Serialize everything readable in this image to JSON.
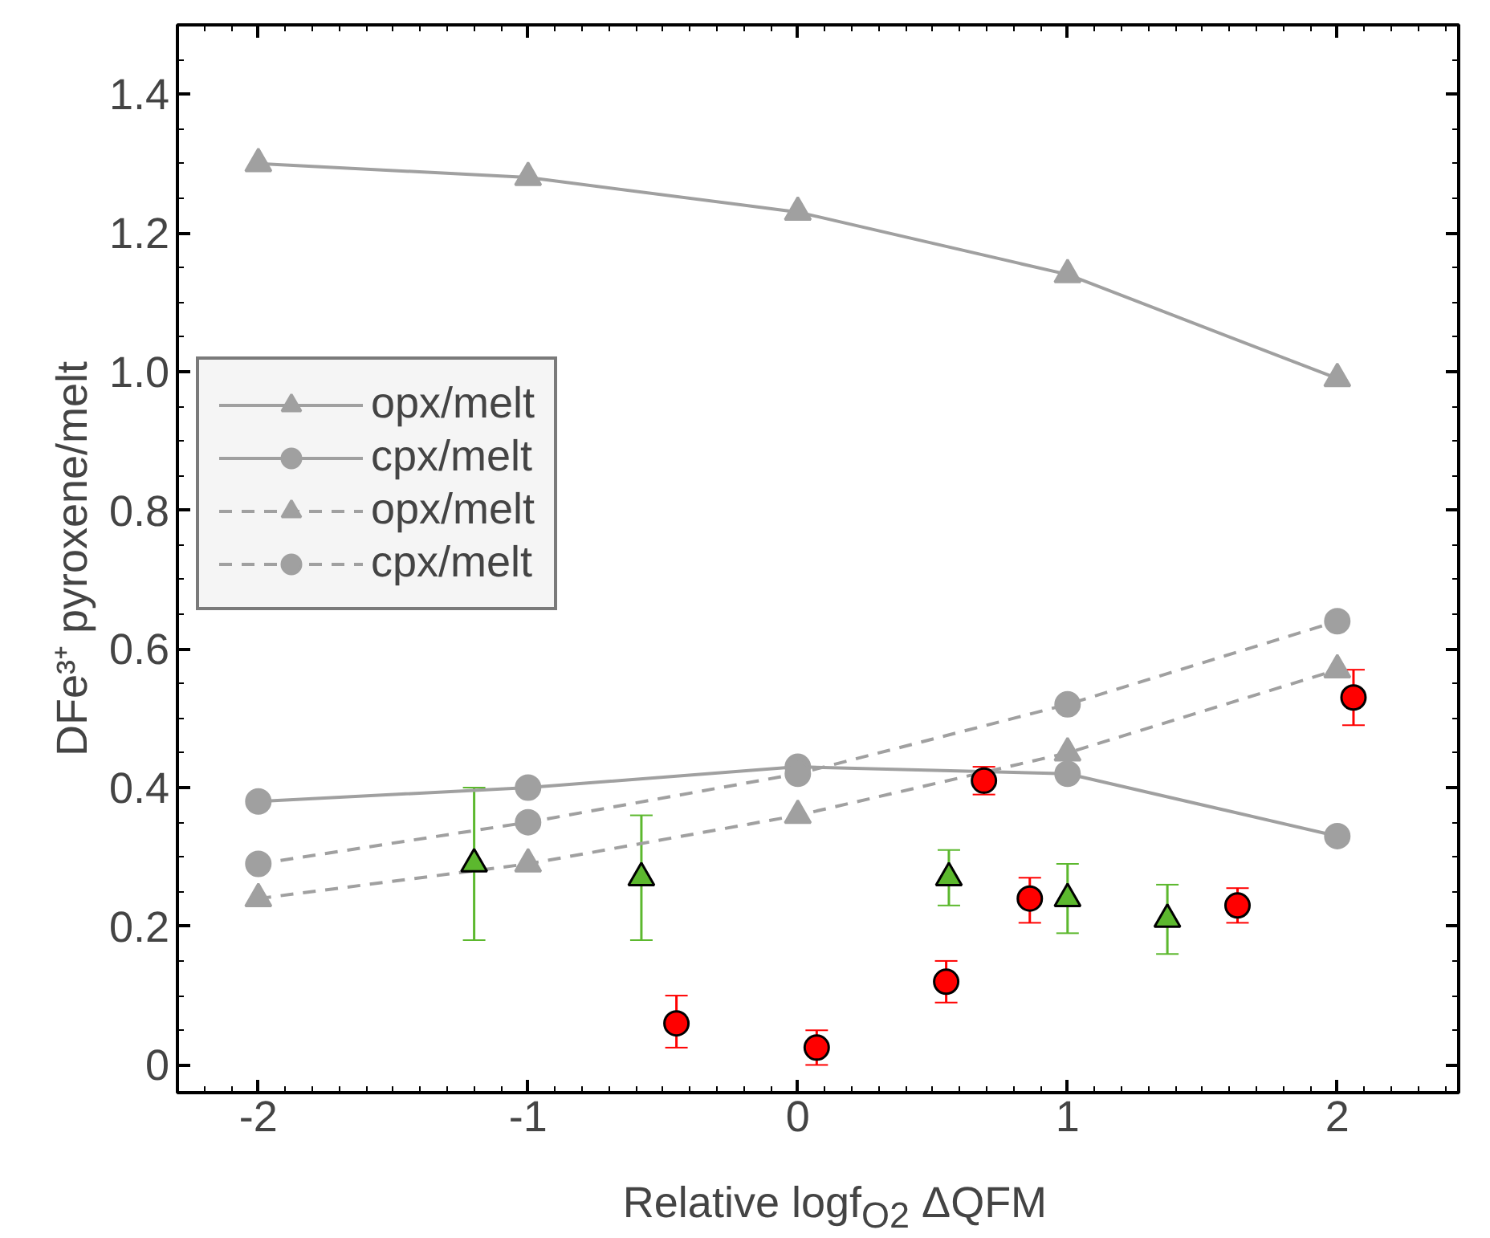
{
  "chart_data": {
    "type": "line",
    "xlabel": "Relative logf$_{O2}$ ΔQFM",
    "ylabel": "DFe³⁺ pyroxene/melt",
    "x": [
      -2,
      -1,
      0,
      1,
      2
    ],
    "xlim": [
      -2.3,
      2.45
    ],
    "ylim": [
      -0.04,
      1.5
    ],
    "xticks": [
      -2,
      -1,
      0,
      1,
      2
    ],
    "yticks": [
      0,
      {
        "value": 0.2,
        "label": "0.2"
      },
      {
        "value": 0.4,
        "label": "0.4"
      },
      {
        "value": 0.6,
        "label": "0.6"
      },
      {
        "value": 0.8,
        "label": "0.8"
      },
      {
        "value": 1,
        "label": "1.0"
      },
      {
        "value": 1.2,
        "label": "1.2"
      },
      {
        "value": 1.4,
        "label": "1.4"
      }
    ],
    "grid": false,
    "legend": "left",
    "series": [
      {
        "name": "opx/melt",
        "color": "#a0a0a0",
        "marker": "triangle",
        "line_style": "solid",
        "values": [
          1.3,
          1.28,
          1.23,
          1.14,
          0.99
        ]
      },
      {
        "name": "cpx/melt",
        "color": "#a0a0a0",
        "marker": "circle",
        "line_style": "solid",
        "values": [
          0.38,
          0.4,
          0.43,
          0.42,
          0.33
        ]
      },
      {
        "name": "opx/melt",
        "color": "#a0a0a0",
        "marker": "triangle",
        "line_style": "dashed",
        "values": [
          0.24,
          0.29,
          0.36,
          0.45,
          0.57
        ]
      },
      {
        "name": "cpx/melt",
        "color": "#a0a0a0",
        "marker": "circle",
        "line_style": "dashed",
        "values": [
          0.29,
          0.35,
          0.42,
          0.52,
          0.64
        ]
      },
      {
        "type": "scatter",
        "color": "#5cb82e",
        "marker": "triangle",
        "x": [
          -1.2,
          -0.58,
          0.56,
          1.0,
          1.37
        ],
        "values": [
          0.29,
          0.27,
          0.27,
          0.24,
          0.21
        ],
        "errors": [
          [
            0.18,
            0.4
          ],
          [
            0.18,
            0.36
          ],
          [
            0.23,
            0.31
          ],
          [
            0.19,
            0.29
          ],
          [
            0.16,
            0.26
          ]
        ]
      },
      {
        "type": "scatter",
        "color": "#ff0000",
        "marker": "circle",
        "x": [
          -0.45,
          0.07,
          0.55,
          0.69,
          0.86,
          1.63,
          2.06
        ],
        "values": [
          0.06,
          0.025,
          0.12,
          0.41,
          0.24,
          0.23,
          0.53
        ],
        "errors": [
          [
            0.025,
            0.1
          ],
          [
            0.0,
            0.05
          ],
          [
            0.09,
            0.15
          ],
          [
            0.39,
            0.43
          ],
          [
            0.205,
            0.27
          ],
          [
            0.205,
            0.255
          ],
          [
            0.49,
            0.57
          ]
        ]
      }
    ]
  }
}
